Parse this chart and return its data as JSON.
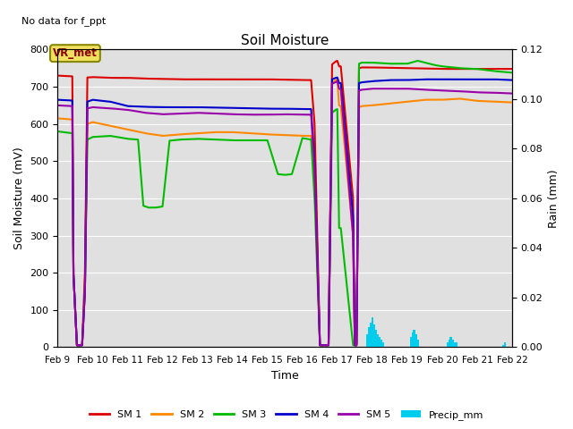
{
  "title": "Soil Moisture",
  "subtitle": "No data for f_ppt",
  "xlabel": "Time",
  "ylabel_left": "Soil Moisture (mV)",
  "ylabel_right": "Rain (mm)",
  "ylim_left": [
    0,
    800
  ],
  "ylim_right": [
    0,
    0.12
  ],
  "yticks_left": [
    0,
    100,
    200,
    300,
    400,
    500,
    600,
    700,
    800
  ],
  "yticks_right": [
    0.0,
    0.02,
    0.04,
    0.06,
    0.08,
    0.1,
    0.12
  ],
  "bg_color": "#e0e0e0",
  "legend_box_facecolor": "#f0e060",
  "legend_box_edgecolor": "#888800",
  "legend_box_label": "VR_met",
  "colors": {
    "SM1": "#dd0000",
    "SM2": "#ff8800",
    "SM3": "#00bb00",
    "SM4": "#0000cc",
    "SM5": "#9900aa",
    "Precip": "#00ccee"
  },
  "time_labels": [
    "Feb 9",
    "Feb 10",
    "Feb 11",
    "Feb 12",
    "Feb 13",
    "Feb 14",
    "Feb 15",
    "Feb 16",
    "Feb 17",
    "Feb 18",
    "Feb 19",
    "Feb 20",
    "Feb 21",
    "Feb 22"
  ],
  "lw": 1.5
}
